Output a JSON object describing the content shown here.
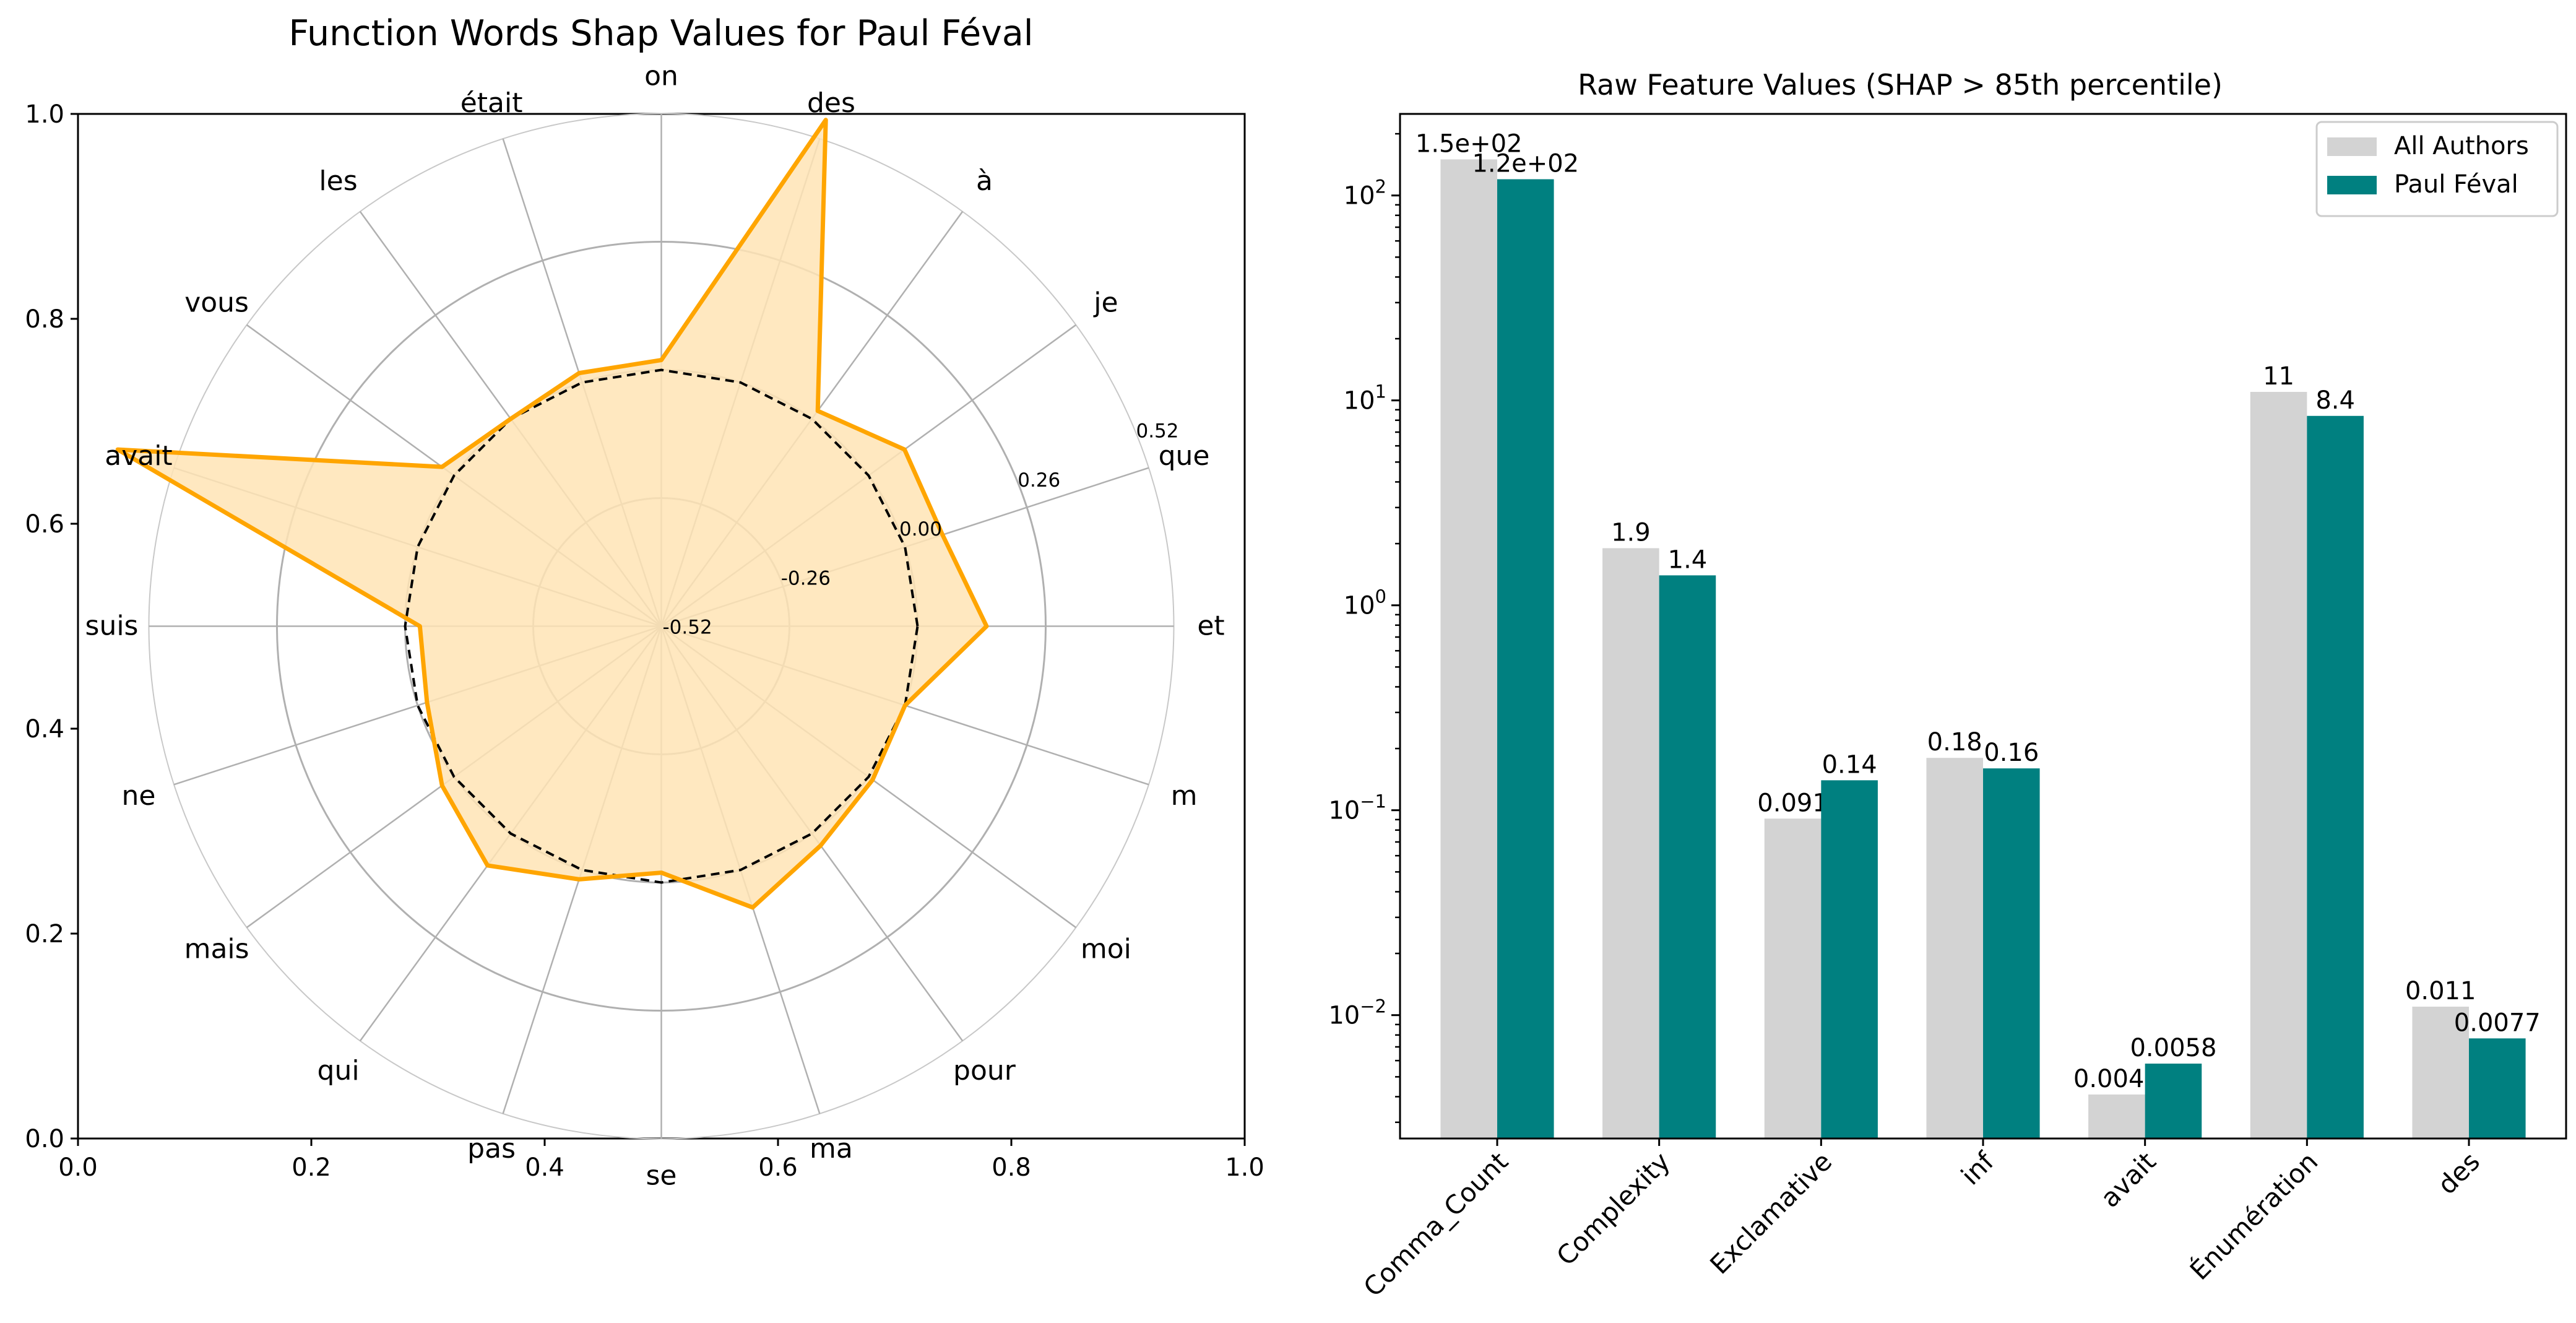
{
  "chart_data": [
    {
      "type": "radar",
      "title": "Function Words Shap Values for Paul Féval",
      "categories": [
        "et",
        "que",
        "je",
        "à",
        "des",
        "on",
        "était",
        "les",
        "vous",
        "avait",
        "suis",
        "ne",
        "mais",
        "qui",
        "pas",
        "se",
        "ma",
        "pour",
        "moi",
        "m"
      ],
      "series": [
        {
          "role": "author-shap",
          "values": [
            0.14,
            0.08,
            0.09,
            0.02,
            0.56,
            0.02,
            0.02,
            0.0,
            0.03,
            0.64,
            -0.03,
            -0.02,
            0.03,
            0.08,
            0.02,
            -0.02,
            0.08,
            0.03,
            0.01,
            0.0
          ],
          "color": "#FFA500",
          "fill": "#FFE4B5"
        },
        {
          "role": "baseline",
          "values": [
            0,
            0,
            0,
            0,
            0,
            0,
            0,
            0,
            0,
            0,
            0,
            0,
            0,
            0,
            0,
            0,
            0,
            0,
            0,
            0
          ],
          "color": "#000000",
          "style": "dashed"
        }
      ],
      "radial_ticks": [
        -0.52,
        -0.26,
        0.0,
        0.26,
        0.52
      ],
      "radial_tick_labels": [
        "-0.52",
        "-0.26",
        "0.00",
        "0.26",
        "0.52"
      ],
      "radial_range": [
        -0.52,
        0.52
      ],
      "frame_ticks": [
        "0.0",
        "0.2",
        "0.4",
        "0.6",
        "0.8",
        "1.0"
      ],
      "grid": true
    },
    {
      "type": "bar",
      "title": "Raw Feature Values (SHAP > 85th percentile)",
      "categories": [
        "Comma_Count",
        "Complexity",
        "Exclamative",
        "inf",
        "avait",
        "Énumération",
        "des"
      ],
      "series": [
        {
          "name": "All Authors",
          "values": [
            150,
            1.9,
            0.091,
            0.18,
            0.0041,
            11,
            0.011
          ],
          "labels": [
            "1.5e+02",
            "1.9",
            "0.091",
            "0.18",
            "0.0041",
            "11",
            "0.011"
          ],
          "color": "#D3D3D3"
        },
        {
          "name": "Paul Féval",
          "values": [
            120,
            1.4,
            0.14,
            0.16,
            0.0058,
            8.4,
            0.0077
          ],
          "labels": [
            "1.2e+02",
            "1.4",
            "0.14",
            "0.16",
            "0.0058",
            "8.4",
            "0.0077"
          ],
          "color": "#008080"
        }
      ],
      "yscale": "log",
      "ylim": [
        0.0025,
        250
      ],
      "yticks": [
        0.01,
        0.1,
        1,
        10,
        100
      ],
      "ytick_labels": [
        [
          "10",
          "−2"
        ],
        [
          "10",
          "−1"
        ],
        [
          "10",
          "0"
        ],
        [
          "10",
          "1"
        ],
        [
          "10",
          "2"
        ]
      ],
      "legend_position": "top-right",
      "grid": false
    }
  ]
}
